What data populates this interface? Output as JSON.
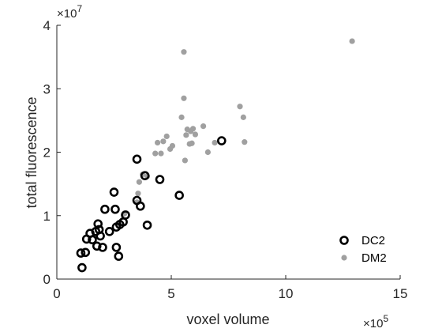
{
  "chart_data": {
    "type": "scatter",
    "title": "",
    "xlabel": "voxel volume",
    "ylabel": "total fluorescence",
    "x_multiplier": "×10",
    "x_exponent": "5",
    "y_multiplier": "×10",
    "y_exponent": "7",
    "xlim": [
      0,
      15
    ],
    "ylim": [
      0,
      4
    ],
    "x_ticks": [
      "0",
      "5",
      "10",
      "15"
    ],
    "y_ticks": [
      "0",
      "1",
      "2",
      "3",
      "4"
    ],
    "grid": false,
    "legend_position": "bottom-right",
    "series": [
      {
        "name": "DC2",
        "color": "#000000",
        "marker": "open-circle",
        "points": [
          [
            1.05,
            0.41
          ],
          [
            1.25,
            0.42
          ],
          [
            1.1,
            0.18
          ],
          [
            1.3,
            0.63
          ],
          [
            1.45,
            0.72
          ],
          [
            1.55,
            0.62
          ],
          [
            1.7,
            0.75
          ],
          [
            1.75,
            0.52
          ],
          [
            1.85,
            0.78
          ],
          [
            1.8,
            0.87
          ],
          [
            1.9,
            0.68
          ],
          [
            2.0,
            0.5
          ],
          [
            2.1,
            1.1
          ],
          [
            2.3,
            0.75
          ],
          [
            2.5,
            1.37
          ],
          [
            2.55,
            1.1
          ],
          [
            2.6,
            0.82
          ],
          [
            2.6,
            0.5
          ],
          [
            2.7,
            0.36
          ],
          [
            2.75,
            0.86
          ],
          [
            2.9,
            0.9
          ],
          [
            3.0,
            1.01
          ],
          [
            3.5,
            1.89
          ],
          [
            3.5,
            1.24
          ],
          [
            3.65,
            1.15
          ],
          [
            3.85,
            1.63
          ],
          [
            3.95,
            0.85
          ],
          [
            4.5,
            1.57
          ],
          [
            5.35,
            1.32
          ],
          [
            7.2,
            2.18
          ]
        ]
      },
      {
        "name": "DM2",
        "color": "#a0a0a0",
        "marker": "filled-dot",
        "points": [
          [
            2.95,
            1.03
          ],
          [
            3.5,
            1.21
          ],
          [
            3.55,
            1.35
          ],
          [
            3.6,
            1.53
          ],
          [
            3.75,
            1.65
          ],
          [
            3.95,
            1.62
          ],
          [
            4.3,
            1.98
          ],
          [
            4.4,
            2.15
          ],
          [
            4.55,
            1.98
          ],
          [
            4.65,
            2.17
          ],
          [
            4.8,
            2.25
          ],
          [
            4.95,
            2.05
          ],
          [
            5.05,
            2.1
          ],
          [
            5.45,
            2.55
          ],
          [
            5.55,
            3.58
          ],
          [
            5.55,
            2.85
          ],
          [
            5.6,
            1.87
          ],
          [
            5.65,
            2.27
          ],
          [
            5.7,
            2.36
          ],
          [
            5.8,
            2.13
          ],
          [
            5.85,
            2.33
          ],
          [
            5.9,
            2.14
          ],
          [
            5.95,
            2.37
          ],
          [
            6.05,
            2.28
          ],
          [
            6.4,
            2.41
          ],
          [
            6.6,
            2.0
          ],
          [
            6.9,
            2.15
          ],
          [
            8.0,
            2.72
          ],
          [
            8.15,
            2.55
          ],
          [
            8.2,
            2.16
          ],
          [
            12.9,
            3.75
          ]
        ]
      }
    ]
  }
}
